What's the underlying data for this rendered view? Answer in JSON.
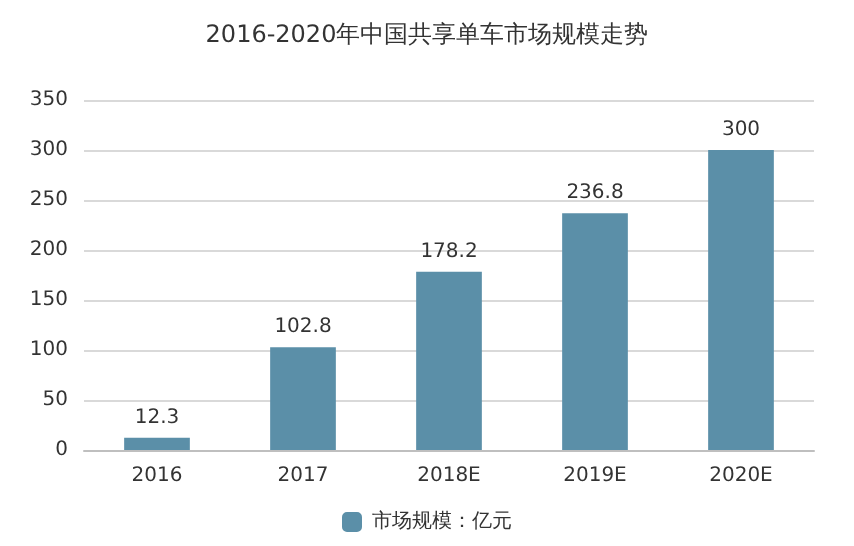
{
  "chart_data": {
    "type": "bar",
    "title": "2016-2020年中国共享单车市场规模走势",
    "categories": [
      "2016",
      "2017",
      "2018E",
      "2019E",
      "2020E"
    ],
    "series": [
      {
        "name": "市场规模：亿元",
        "color": "#5b8fa8",
        "values": [
          12.3,
          102.8,
          178.2,
          236.8,
          300
        ]
      }
    ],
    "ylim": [
      0,
      350
    ],
    "yticks": [
      0,
      50,
      100,
      150,
      200,
      250,
      300,
      350
    ],
    "grid": "y",
    "legend": "bottom",
    "data_labels": true
  }
}
